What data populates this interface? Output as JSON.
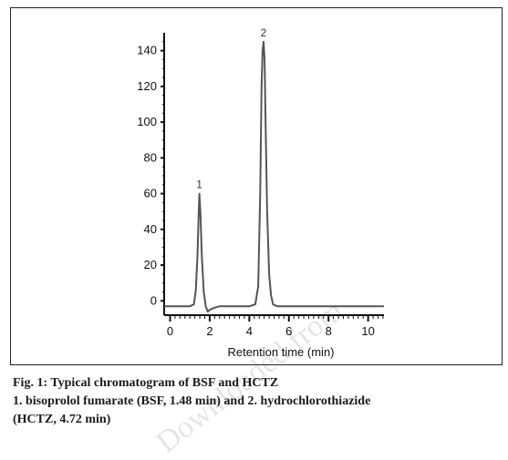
{
  "chart_data": {
    "type": "line",
    "xlabel": "Retention time (min)",
    "ylabel": "",
    "x_ticks": [
      0,
      2,
      4,
      6,
      8,
      10
    ],
    "y_ticks": [
      0,
      20,
      40,
      60,
      80,
      100,
      120,
      140
    ],
    "xlim": [
      -0.3,
      10.8
    ],
    "ylim": [
      -8,
      150
    ],
    "baseline": -3,
    "series": [
      {
        "x": [
          -0.3,
          0.5,
          1.0,
          1.2,
          1.3,
          1.38,
          1.44,
          1.48,
          1.53,
          1.6,
          1.7,
          1.8,
          1.9,
          2.0,
          2.2,
          2.5,
          3.0,
          3.5,
          4.0,
          4.3,
          4.45,
          4.55,
          4.62,
          4.67,
          4.72,
          4.77,
          4.82,
          4.9,
          5.0,
          5.1,
          5.2,
          5.4,
          6.0,
          7.0,
          8.0,
          9.0,
          10.0,
          10.8
        ],
        "y": [
          -3,
          -3,
          -3,
          -2,
          6,
          25,
          48,
          60,
          50,
          25,
          5,
          -3,
          -6,
          -5,
          -4,
          -3,
          -3,
          -3,
          -3,
          -2,
          8,
          60,
          120,
          140,
          145,
          135,
          100,
          50,
          15,
          3,
          -2,
          -3,
          -3,
          -3,
          -3,
          -3,
          -3,
          -3
        ]
      }
    ],
    "peaks": [
      {
        "label": "1",
        "x": 1.48,
        "y": 60
      },
      {
        "label": "2",
        "x": 4.72,
        "y": 145
      }
    ],
    "grid": false
  },
  "caption": {
    "line1": "Fig. 1: Typical chromatogram of BSF and HCTZ",
    "line2": "1. bisoprolol fumarate (BSF, 1.48 min) and 2. hydrochlorothiazide",
    "line3": "(HCTZ, 4.72 min)"
  },
  "watermark": "Downloaded from",
  "colors": {
    "trace": "#555555",
    "axis": "#111111"
  }
}
